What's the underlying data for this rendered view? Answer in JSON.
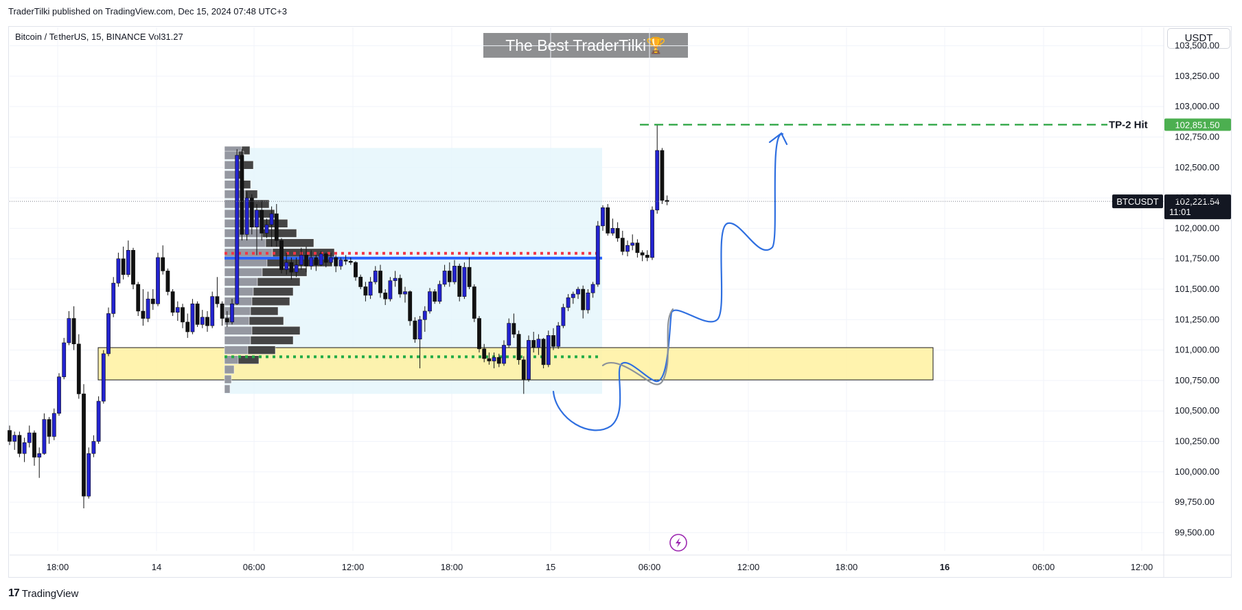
{
  "header": {
    "published": "TraderTilki published on TradingView.com, Dec 15, 2024 07:48 UTC+3",
    "symbol_info": "Bitcoin / TetherUS, 15, BINANCE  Vol31.27",
    "watermark": "The Best TraderTilki🏆",
    "currency": "USDT"
  },
  "footer": {
    "brand": "TradingView",
    "logo": "17"
  },
  "colors": {
    "up": "#2323d0",
    "down": "#111111",
    "zone": "#fff2a6",
    "profile_bg": "#e4f5fb",
    "poc": "#2962ff",
    "vah": "#f23645",
    "val": "#22ab45",
    "target": "#26a23e",
    "arrow": "#2f6fe0",
    "path": "#8c9299",
    "flash": "#9c27b0"
  },
  "chart_data": {
    "type": "candlestick",
    "symbol": "BTCUSDT",
    "interval": "15",
    "ylim": [
      99350,
      103650
    ],
    "y_ticks": [
      99500,
      99750,
      100000,
      100250,
      100500,
      100750,
      101000,
      101250,
      101500,
      101750,
      102000,
      102250,
      102500,
      102750,
      103000,
      103250,
      103500
    ],
    "y_tick_labels": [
      "99,500.00",
      "99,750.00",
      "100,000.00",
      "100,250.00",
      "100,500.00",
      "100,750.00",
      "101,000.00",
      "101,250.00",
      "101,500.00",
      "101,750.00",
      "102,000.00",
      "102,250.00",
      "102,500.00",
      "102,750.00",
      "103,000.00",
      "103,250.00",
      "103,500.00"
    ],
    "x_tick_labels": [
      "18:00",
      "14",
      "06:00",
      "12:00",
      "18:00",
      "15",
      "06:00",
      "12:00",
      "18:00",
      "16",
      "06:00",
      "12:00"
    ],
    "last_price": {
      "symbol": "BTCUSDT",
      "value": 102221.54,
      "label": "102,221.54",
      "countdown": "11:01"
    },
    "target": {
      "label": "TP-2 Hit",
      "value": 102851.5,
      "value_label": "102,851.50"
    },
    "demand_zone": {
      "low": 100755,
      "high": 101020
    },
    "volume_profile": {
      "poc": 101755,
      "vah": 101795,
      "val": 100945,
      "high": 102660,
      "low": 100640
    },
    "candles": [
      [
        100340,
        100380,
        100220,
        100250
      ],
      [
        100250,
        100330,
        100180,
        100300
      ],
      [
        100300,
        100330,
        100120,
        100150
      ],
      [
        100150,
        100280,
        100080,
        100240
      ],
      [
        100240,
        100380,
        100200,
        100320
      ],
      [
        100320,
        100340,
        100050,
        100120
      ],
      [
        100120,
        100200,
        99950,
        100150
      ],
      [
        100150,
        100480,
        100140,
        100430
      ],
      [
        100430,
        100450,
        100230,
        100290
      ],
      [
        100290,
        100520,
        100260,
        100480
      ],
      [
        100480,
        100810,
        100460,
        100780
      ],
      [
        100780,
        101100,
        100760,
        101060
      ],
      [
        101060,
        101320,
        101040,
        101260
      ],
      [
        101260,
        101360,
        101000,
        101050
      ],
      [
        101050,
        101130,
        100600,
        100640
      ],
      [
        100640,
        100720,
        99700,
        99800
      ],
      [
        99800,
        100200,
        99780,
        100150
      ],
      [
        100150,
        100300,
        100120,
        100250
      ],
      [
        100250,
        100620,
        100230,
        100580
      ],
      [
        100580,
        101000,
        100560,
        100970
      ],
      [
        100970,
        101350,
        100950,
        101300
      ],
      [
        101300,
        101600,
        101270,
        101550
      ],
      [
        101550,
        101800,
        101520,
        101750
      ],
      [
        101750,
        101850,
        101580,
        101620
      ],
      [
        101620,
        101900,
        101600,
        101820
      ],
      [
        101820,
        101840,
        101500,
        101540
      ],
      [
        101540,
        101560,
        101280,
        101320
      ],
      [
        101320,
        101500,
        101200,
        101260
      ],
      [
        101260,
        101480,
        101230,
        101420
      ],
      [
        101420,
        101500,
        101330,
        101380
      ],
      [
        101380,
        101800,
        101360,
        101760
      ],
      [
        101760,
        101860,
        101620,
        101650
      ],
      [
        101650,
        101670,
        101450,
        101480
      ],
      [
        101480,
        101500,
        101280,
        101310
      ],
      [
        101310,
        101400,
        101240,
        101350
      ],
      [
        101350,
        101380,
        101180,
        101230
      ],
      [
        101230,
        101300,
        101100,
        101150
      ],
      [
        101150,
        101420,
        101130,
        101380
      ],
      [
        101380,
        101400,
        101190,
        101210
      ],
      [
        101210,
        101330,
        101180,
        101270
      ],
      [
        101270,
        101320,
        101150,
        101200
      ],
      [
        101200,
        101480,
        101180,
        101440
      ],
      [
        101440,
        101600,
        101350,
        101380
      ],
      [
        101380,
        101400,
        101200,
        101260
      ],
      [
        101260,
        101320,
        101190,
        101230
      ],
      [
        101230,
        101420,
        101210,
        101380
      ],
      [
        101380,
        102650,
        101370,
        102600
      ],
      [
        102600,
        102650,
        101900,
        101950
      ],
      [
        101950,
        102300,
        101900,
        102250
      ],
      [
        102250,
        102280,
        101950,
        102010
      ],
      [
        102010,
        102200,
        101780,
        102150
      ],
      [
        102150,
        102230,
        101900,
        101960
      ],
      [
        101960,
        102080,
        101920,
        102030
      ],
      [
        102030,
        102180,
        101850,
        102120
      ],
      [
        102120,
        102200,
        101850,
        101900
      ],
      [
        101900,
        101920,
        101630,
        101660
      ],
      [
        101660,
        101800,
        101620,
        101720
      ],
      [
        101720,
        101760,
        101580,
        101640
      ],
      [
        101640,
        101760,
        101600,
        101700
      ],
      [
        101700,
        101840,
        101660,
        101780
      ],
      [
        101780,
        101850,
        101640,
        101690
      ],
      [
        101690,
        101820,
        101660,
        101760
      ],
      [
        101760,
        101780,
        101650,
        101700
      ],
      [
        101700,
        101810,
        101690,
        101790
      ],
      [
        101790,
        101800,
        101680,
        101720
      ],
      [
        101720,
        101800,
        101700,
        101760
      ],
      [
        101760,
        101780,
        101640,
        101690
      ],
      [
        101690,
        101760,
        101660,
        101740
      ],
      [
        101740,
        101780,
        101700,
        101730
      ],
      [
        101730,
        101760,
        101700,
        101720
      ],
      [
        101720,
        101730,
        101570,
        101600
      ],
      [
        101600,
        101620,
        101500,
        101520
      ],
      [
        101520,
        101560,
        101400,
        101450
      ],
      [
        101450,
        101600,
        101420,
        101560
      ],
      [
        101560,
        101690,
        101540,
        101650
      ],
      [
        101650,
        101700,
        101430,
        101470
      ],
      [
        101470,
        101500,
        101370,
        101420
      ],
      [
        101420,
        101600,
        101400,
        101570
      ],
      [
        101570,
        101650,
        101520,
        101590
      ],
      [
        101590,
        101620,
        101430,
        101460
      ],
      [
        101460,
        101520,
        101390,
        101480
      ],
      [
        101480,
        101490,
        101200,
        101240
      ],
      [
        101240,
        101270,
        101060,
        101090
      ],
      [
        101090,
        101280,
        100850,
        101250
      ],
      [
        101250,
        101360,
        101150,
        101320
      ],
      [
        101320,
        101510,
        101300,
        101480
      ],
      [
        101480,
        101500,
        101380,
        101400
      ],
      [
        101400,
        101570,
        101380,
        101540
      ],
      [
        101540,
        101700,
        101520,
        101650
      ],
      [
        101650,
        101720,
        101520,
        101560
      ],
      [
        101560,
        101740,
        101540,
        101690
      ],
      [
        101690,
        101710,
        101400,
        101440
      ],
      [
        101440,
        101720,
        101420,
        101680
      ],
      [
        101680,
        101760,
        101500,
        101520
      ],
      [
        101520,
        101540,
        101230,
        101260
      ],
      [
        101260,
        101280,
        100980,
        101010
      ],
      [
        101010,
        101050,
        100900,
        100930
      ],
      [
        100930,
        100980,
        100880,
        100910
      ],
      [
        100910,
        100980,
        100850,
        100940
      ],
      [
        100940,
        100970,
        100860,
        100890
      ],
      [
        100890,
        101080,
        100870,
        101040
      ],
      [
        101040,
        101260,
        101020,
        101220
      ],
      [
        101220,
        101300,
        101100,
        101130
      ],
      [
        101130,
        101160,
        100880,
        100920
      ],
      [
        100920,
        100950,
        100640,
        100760
      ],
      [
        100760,
        101120,
        100740,
        101080
      ],
      [
        101080,
        101150,
        100980,
        101020
      ],
      [
        101020,
        101130,
        100960,
        101090
      ],
      [
        101090,
        101100,
        100850,
        100880
      ],
      [
        100880,
        101160,
        100860,
        101120
      ],
      [
        101120,
        101180,
        101000,
        101030
      ],
      [
        101030,
        101230,
        101010,
        101200
      ],
      [
        101200,
        101380,
        101180,
        101350
      ],
      [
        101350,
        101460,
        101320,
        101430
      ],
      [
        101430,
        101480,
        101380,
        101460
      ],
      [
        101460,
        101520,
        101420,
        101500
      ],
      [
        101500,
        101530,
        101260,
        101330
      ],
      [
        101330,
        101500,
        101300,
        101470
      ],
      [
        101470,
        101560,
        101430,
        101540
      ],
      [
        101540,
        102060,
        101520,
        102020
      ],
      [
        102020,
        102190,
        101980,
        102170
      ],
      [
        102170,
        102200,
        101940,
        101960
      ],
      [
        101960,
        102080,
        101940,
        102000
      ],
      [
        102000,
        102050,
        101890,
        101920
      ],
      [
        101920,
        101980,
        101780,
        101810
      ],
      [
        101810,
        101900,
        101770,
        101860
      ],
      [
        101860,
        101950,
        101820,
        101880
      ],
      [
        101880,
        101910,
        101760,
        101800
      ],
      [
        101800,
        101820,
        101730,
        101780
      ],
      [
        101780,
        101820,
        101730,
        101760
      ],
      [
        101760,
        102180,
        101740,
        102150
      ],
      [
        102150,
        102850,
        102120,
        102640
      ],
      [
        102640,
        102660,
        102200,
        102230
      ],
      [
        102230,
        102270,
        102190,
        102220
      ]
    ]
  }
}
